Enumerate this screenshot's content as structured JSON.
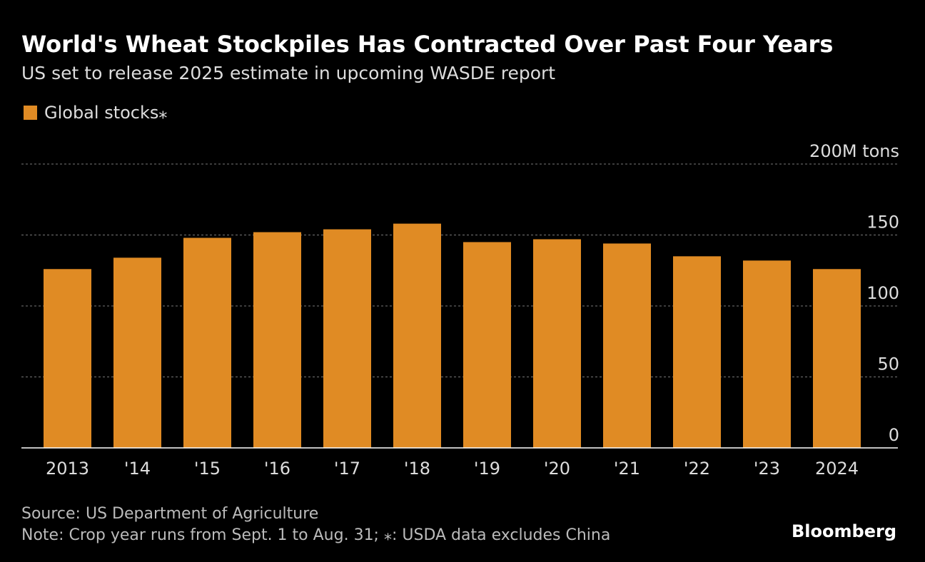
{
  "chart_data": {
    "type": "bar",
    "title": "World's Wheat Stockpiles Has Contracted Over Past Four Years",
    "subtitle": "US set to release 2025 estimate in upcoming WASDE report",
    "series": [
      {
        "name": "Global stocks⁎",
        "color": "#e08b24",
        "values": [
          126,
          134,
          148,
          152,
          154,
          158,
          145,
          147,
          144,
          135,
          132,
          126
        ]
      }
    ],
    "categories": [
      "2013",
      "'14",
      "'15",
      "'16",
      "'17",
      "'18",
      "'19",
      "'20",
      "'21",
      "'22",
      "'23",
      "2024"
    ],
    "ylim": [
      0,
      200
    ],
    "yticks": [
      0,
      50,
      100,
      150,
      {
        "value": 200,
        "label": "200M tons"
      }
    ],
    "grid": true,
    "source": "Source: US Department of Agriculture",
    "note": "Note: Crop year runs from Sept. 1 to Aug. 31; ⁎: USDA data excludes China",
    "brand": "Bloomberg"
  }
}
